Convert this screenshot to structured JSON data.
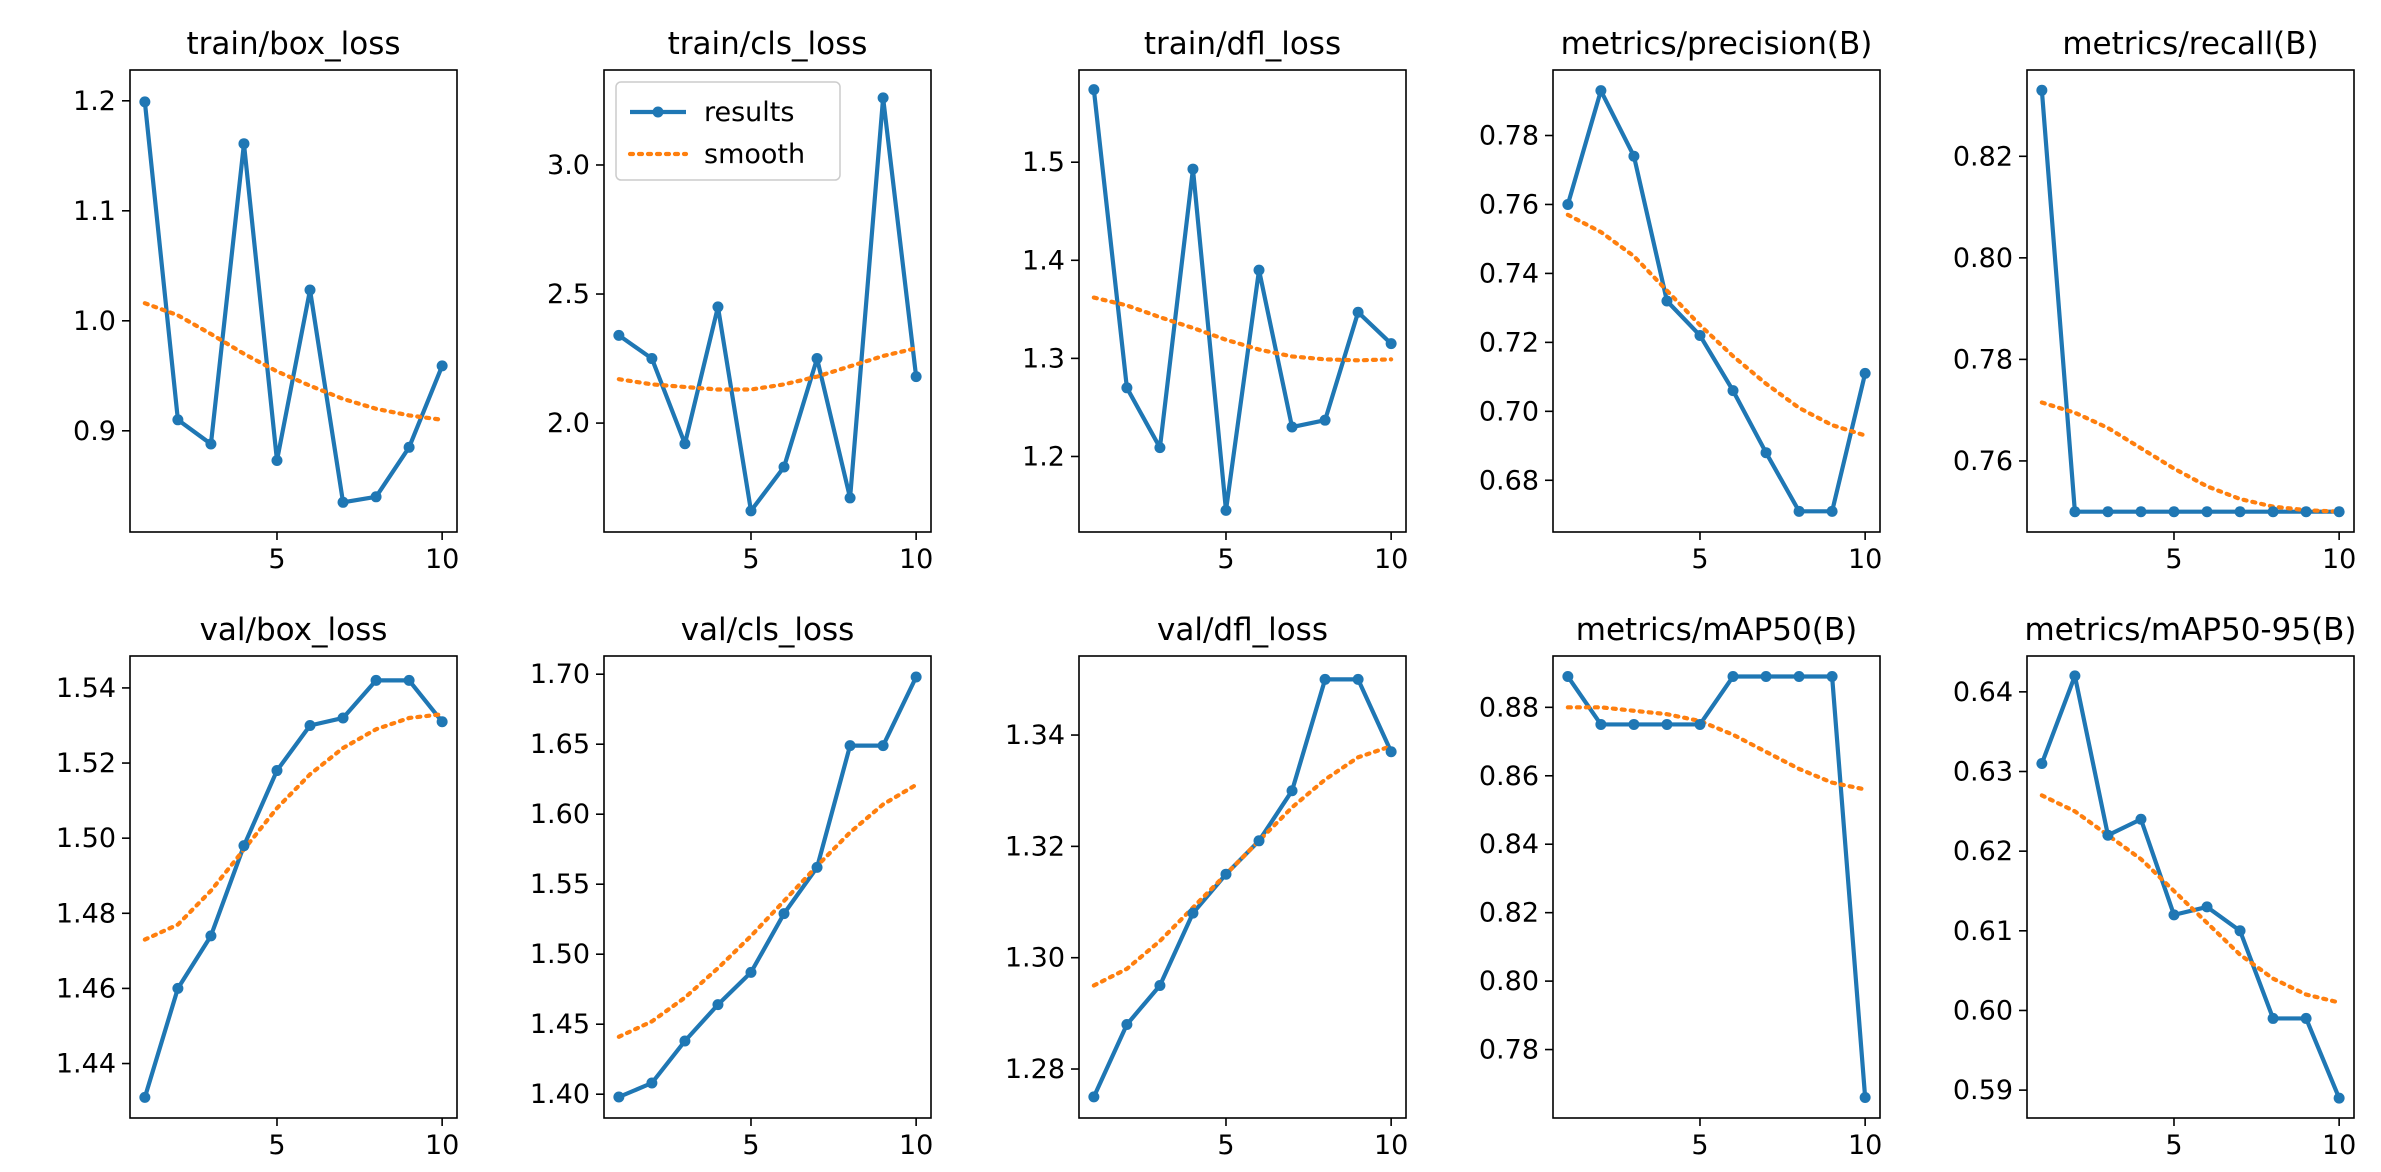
{
  "colors": {
    "results": "#1f77b4",
    "smooth": "#ff7f0e"
  },
  "legend": {
    "results_label": "results",
    "smooth_label": "smooth",
    "placement": "upper-left",
    "panel": 1
  },
  "chart_data": [
    {
      "type": "line",
      "title": "train/box_loss",
      "x": [
        1,
        2,
        3,
        4,
        5,
        6,
        7,
        8,
        9,
        10
      ],
      "xticks": [
        5,
        10
      ],
      "xticklabels": [
        "5",
        "10"
      ],
      "xlim": [
        0.55,
        10.45
      ],
      "ylim": [
        0.808,
        1.228
      ],
      "yticks": [
        0.9,
        1.0,
        1.1,
        1.2
      ],
      "yticklabels": [
        "0.9",
        "1.0",
        "1.1",
        "1.2"
      ],
      "series": [
        {
          "name": "results",
          "values": [
            1.199,
            0.91,
            0.888,
            1.161,
            0.873,
            1.028,
            0.835,
            0.84,
            0.885,
            0.959
          ]
        },
        {
          "name": "smooth",
          "values": [
            1.016,
            1.005,
            0.988,
            0.97,
            0.954,
            0.941,
            0.929,
            0.92,
            0.914,
            0.91
          ]
        }
      ]
    },
    {
      "type": "line",
      "title": "train/cls_loss",
      "x": [
        1,
        2,
        3,
        4,
        5,
        6,
        7,
        8,
        9,
        10
      ],
      "xticks": [
        5,
        10
      ],
      "xticklabels": [
        "5",
        "10"
      ],
      "xlim": [
        0.55,
        10.45
      ],
      "ylim": [
        1.578,
        3.368
      ],
      "yticks": [
        2.0,
        2.5,
        3.0
      ],
      "yticklabels": [
        "2.0",
        "2.5",
        "3.0"
      ],
      "series": [
        {
          "name": "results",
          "values": [
            2.34,
            2.25,
            1.92,
            2.45,
            1.66,
            1.83,
            2.25,
            1.71,
            3.26,
            2.18
          ]
        },
        {
          "name": "smooth",
          "values": [
            2.17,
            2.15,
            2.14,
            2.13,
            2.13,
            2.15,
            2.18,
            2.22,
            2.26,
            2.29
          ]
        }
      ]
    },
    {
      "type": "line",
      "title": "train/dfl_loss",
      "x": [
        1,
        2,
        3,
        4,
        5,
        6,
        7,
        8,
        9,
        10
      ],
      "xticks": [
        5,
        10
      ],
      "xticklabels": [
        "5",
        "10"
      ],
      "xlim": [
        0.55,
        10.45
      ],
      "ylim": [
        1.123,
        1.594
      ],
      "yticks": [
        1.2,
        1.3,
        1.4,
        1.5
      ],
      "yticklabels": [
        "1.2",
        "1.3",
        "1.4",
        "1.5"
      ],
      "series": [
        {
          "name": "results",
          "values": [
            1.574,
            1.27,
            1.209,
            1.493,
            1.145,
            1.39,
            1.23,
            1.237,
            1.347,
            1.315
          ]
        },
        {
          "name": "smooth",
          "values": [
            1.362,
            1.354,
            1.342,
            1.331,
            1.319,
            1.309,
            1.302,
            1.299,
            1.298,
            1.299
          ]
        }
      ]
    },
    {
      "type": "line",
      "title": "metrics/precision(B)",
      "x": [
        1,
        2,
        3,
        4,
        5,
        6,
        7,
        8,
        9,
        10
      ],
      "xticks": [
        5,
        10
      ],
      "xticklabels": [
        "5",
        "10"
      ],
      "xlim": [
        0.55,
        10.45
      ],
      "ylim": [
        0.665,
        0.799
      ],
      "yticks": [
        0.68,
        0.7,
        0.72,
        0.74,
        0.76,
        0.78
      ],
      "yticklabels": [
        "0.68",
        "0.70",
        "0.72",
        "0.74",
        "0.76",
        "0.78"
      ],
      "series": [
        {
          "name": "results",
          "values": [
            0.76,
            0.793,
            0.774,
            0.732,
            0.722,
            0.706,
            0.688,
            0.671,
            0.671,
            0.711
          ]
        },
        {
          "name": "smooth",
          "values": [
            0.757,
            0.752,
            0.745,
            0.735,
            0.725,
            0.716,
            0.708,
            0.701,
            0.696,
            0.693
          ]
        }
      ]
    },
    {
      "type": "line",
      "title": "metrics/recall(B)",
      "x": [
        1,
        2,
        3,
        4,
        5,
        6,
        7,
        8,
        9,
        10
      ],
      "xticks": [
        5,
        10
      ],
      "xticklabels": [
        "5",
        "10"
      ],
      "xlim": [
        0.55,
        10.45
      ],
      "ylim": [
        0.746,
        0.837
      ],
      "yticks": [
        0.76,
        0.78,
        0.8,
        0.82
      ],
      "yticklabels": [
        "0.76",
        "0.78",
        "0.80",
        "0.82"
      ],
      "series": [
        {
          "name": "results",
          "values": [
            0.833,
            0.75,
            0.75,
            0.75,
            0.75,
            0.75,
            0.75,
            0.75,
            0.75,
            0.75
          ]
        },
        {
          "name": "smooth",
          "values": [
            0.7715,
            0.7695,
            0.7665,
            0.7625,
            0.7585,
            0.755,
            0.7525,
            0.751,
            0.7503,
            0.75
          ]
        }
      ]
    },
    {
      "type": "line",
      "title": "val/box_loss",
      "x": [
        1,
        2,
        3,
        4,
        5,
        6,
        7,
        8,
        9,
        10
      ],
      "xticks": [
        5,
        10
      ],
      "xticklabels": [
        "5",
        "10"
      ],
      "xlim": [
        0.55,
        10.45
      ],
      "ylim": [
        1.4255,
        1.5485
      ],
      "yticks": [
        1.44,
        1.46,
        1.48,
        1.5,
        1.52,
        1.54
      ],
      "yticklabels": [
        "1.44",
        "1.46",
        "1.48",
        "1.50",
        "1.52",
        "1.54"
      ],
      "series": [
        {
          "name": "results",
          "values": [
            1.431,
            1.46,
            1.474,
            1.498,
            1.518,
            1.53,
            1.532,
            1.542,
            1.542,
            1.531
          ]
        },
        {
          "name": "smooth",
          "values": [
            1.473,
            1.477,
            1.486,
            1.497,
            1.508,
            1.517,
            1.524,
            1.529,
            1.532,
            1.533
          ]
        }
      ]
    },
    {
      "type": "line",
      "title": "val/cls_loss",
      "x": [
        1,
        2,
        3,
        4,
        5,
        6,
        7,
        8,
        9,
        10
      ],
      "xticks": [
        5,
        10
      ],
      "xticklabels": [
        "5",
        "10"
      ],
      "xlim": [
        0.55,
        10.45
      ],
      "ylim": [
        1.383,
        1.713
      ],
      "yticks": [
        1.4,
        1.45,
        1.5,
        1.55,
        1.6,
        1.65,
        1.7
      ],
      "yticklabels": [
        "1.40",
        "1.45",
        "1.50",
        "1.55",
        "1.60",
        "1.65",
        "1.70"
      ],
      "series": [
        {
          "name": "results",
          "values": [
            1.398,
            1.408,
            1.438,
            1.464,
            1.487,
            1.529,
            1.562,
            1.649,
            1.649,
            1.698
          ]
        },
        {
          "name": "smooth",
          "values": [
            1.441,
            1.452,
            1.469,
            1.49,
            1.513,
            1.538,
            1.563,
            1.587,
            1.607,
            1.621
          ]
        }
      ]
    },
    {
      "type": "line",
      "title": "val/dfl_loss",
      "x": [
        1,
        2,
        3,
        4,
        5,
        6,
        7,
        8,
        9,
        10
      ],
      "xticks": [
        5,
        10
      ],
      "xticklabels": [
        "5",
        "10"
      ],
      "xlim": [
        0.55,
        10.45
      ],
      "ylim": [
        1.2712,
        1.3542
      ],
      "yticks": [
        1.28,
        1.3,
        1.32,
        1.34
      ],
      "yticklabels": [
        "1.28",
        "1.30",
        "1.32",
        "1.34"
      ],
      "series": [
        {
          "name": "results",
          "values": [
            1.275,
            1.288,
            1.295,
            1.308,
            1.315,
            1.321,
            1.33,
            1.35,
            1.35,
            1.337
          ]
        },
        {
          "name": "smooth",
          "values": [
            1.295,
            1.298,
            1.303,
            1.309,
            1.315,
            1.321,
            1.327,
            1.332,
            1.336,
            1.338
          ]
        }
      ]
    },
    {
      "type": "line",
      "title": "metrics/mAP50(B)",
      "x": [
        1,
        2,
        3,
        4,
        5,
        6,
        7,
        8,
        9,
        10
      ],
      "xticks": [
        5,
        10
      ],
      "xticklabels": [
        "5",
        "10"
      ],
      "xlim": [
        0.55,
        10.45
      ],
      "ylim": [
        0.76,
        0.895
      ],
      "yticks": [
        0.78,
        0.8,
        0.82,
        0.84,
        0.86,
        0.88
      ],
      "yticklabels": [
        "0.78",
        "0.80",
        "0.82",
        "0.84",
        "0.86",
        "0.88"
      ],
      "series": [
        {
          "name": "results",
          "values": [
            0.889,
            0.875,
            0.875,
            0.875,
            0.875,
            0.889,
            0.889,
            0.889,
            0.889,
            0.766
          ]
        },
        {
          "name": "smooth",
          "values": [
            0.88,
            0.88,
            0.879,
            0.878,
            0.876,
            0.872,
            0.867,
            0.862,
            0.858,
            0.856
          ]
        }
      ]
    },
    {
      "type": "line",
      "title": "metrics/mAP50-95(B)",
      "x": [
        1,
        2,
        3,
        4,
        5,
        6,
        7,
        8,
        9,
        10
      ],
      "xticks": [
        5,
        10
      ],
      "xticklabels": [
        "5",
        "10"
      ],
      "xlim": [
        0.55,
        10.45
      ],
      "ylim": [
        0.5865,
        0.6445
      ],
      "yticks": [
        0.59,
        0.6,
        0.61,
        0.62,
        0.63,
        0.64
      ],
      "yticklabels": [
        "0.59",
        "0.60",
        "0.61",
        "0.62",
        "0.63",
        "0.64"
      ],
      "series": [
        {
          "name": "results",
          "values": [
            0.631,
            0.642,
            0.622,
            0.624,
            0.612,
            0.613,
            0.61,
            0.599,
            0.599,
            0.589
          ]
        },
        {
          "name": "smooth",
          "values": [
            0.627,
            0.625,
            0.622,
            0.619,
            0.615,
            0.611,
            0.607,
            0.604,
            0.602,
            0.601
          ]
        }
      ]
    }
  ]
}
